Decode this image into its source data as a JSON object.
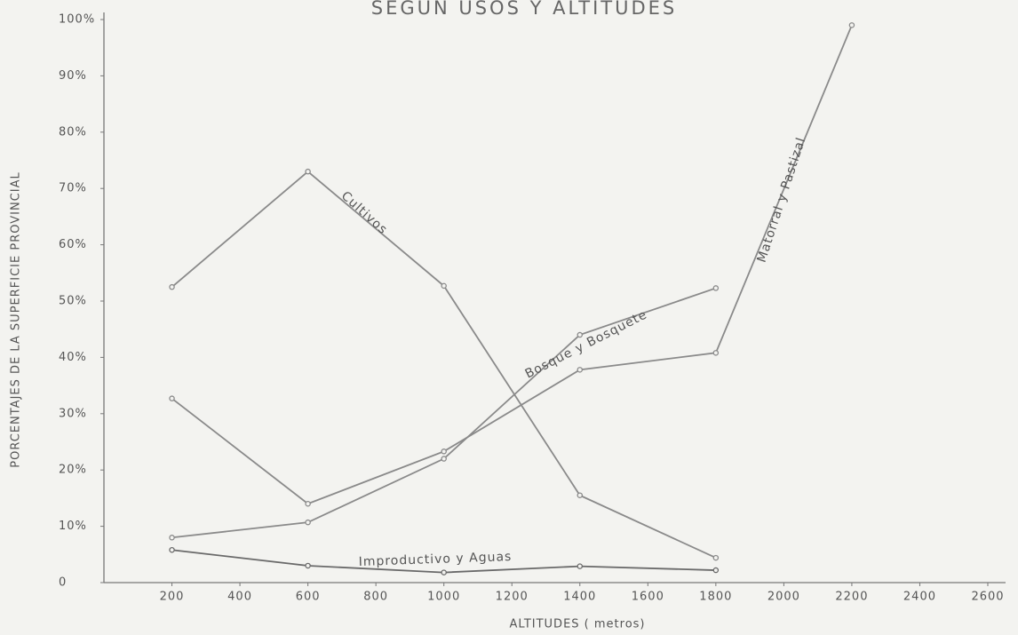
{
  "chart_data": {
    "type": "line",
    "title": "SEGUN USOS Y ALTITUDES",
    "x_label": "ALTITUDES   ( metros)",
    "y_label": "PORCENTAJES DE LA SUPERFICIE PROVINCIAL",
    "x": [
      200,
      600,
      1000,
      1400,
      1800,
      2200
    ],
    "xlim": [
      0,
      2600
    ],
    "xticks": [
      200,
      400,
      600,
      800,
      1000,
      1200,
      1400,
      1600,
      1800,
      2000,
      2200,
      2400,
      2600
    ],
    "ylim": [
      0,
      100
    ],
    "yticks": [
      0,
      {
        "value": 10,
        "label": "10%"
      },
      {
        "value": 20,
        "label": "20%"
      },
      {
        "value": 30,
        "label": "30%"
      },
      {
        "value": 40,
        "label": "40%"
      },
      {
        "value": 50,
        "label": "50%"
      },
      {
        "value": 60,
        "label": "60%"
      },
      {
        "value": 70,
        "label": "70%"
      },
      {
        "value": 80,
        "label": "80%"
      },
      {
        "value": 90,
        "label": "90%"
      },
      {
        "value": 100,
        "label": "100%"
      }
    ],
    "grid": false,
    "series": [
      {
        "name": "Cultivos",
        "color": "#8a8a8a",
        "values": [
          52.5,
          73,
          52.7,
          15.5,
          4.4,
          null
        ]
      },
      {
        "name": "Bosque y Bosquete",
        "color": "#8a8a8a",
        "values": [
          8,
          10.7,
          22,
          44,
          52.3,
          null
        ]
      },
      {
        "name": "Matorral y Pastizal",
        "color": "#8a8a8a",
        "values": [
          32.7,
          14,
          23.3,
          37.8,
          40.8,
          99
        ]
      },
      {
        "name": "Improductivo y Aguas",
        "color": "#6a6a6a",
        "values": [
          5.8,
          3,
          1.8,
          2.9,
          2.2,
          null
        ]
      }
    ]
  }
}
